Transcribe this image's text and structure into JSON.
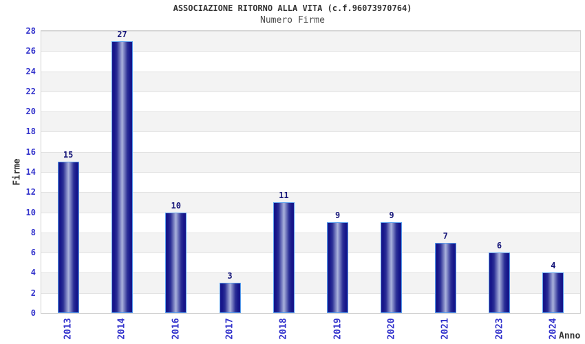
{
  "chart_data": {
    "type": "bar",
    "title": "ASSOCIAZIONE RITORNO ALLA VITA (c.f.96073970764)",
    "subtitle": "Numero Firme",
    "categories": [
      "2013",
      "2014",
      "2016",
      "2017",
      "2018",
      "2019",
      "2020",
      "2021",
      "2023",
      "2024"
    ],
    "values": [
      15,
      27,
      10,
      3,
      11,
      9,
      9,
      7,
      6,
      4
    ],
    "xlabel": "Anno",
    "ylabel": "Firme",
    "ylim": [
      0,
      28
    ],
    "ytick_step": 2,
    "yticks": [
      0,
      2,
      4,
      6,
      8,
      10,
      12,
      14,
      16,
      18,
      20,
      22,
      24,
      26,
      28
    ],
    "grid": true,
    "legend": false,
    "bar_value_labels": [
      15,
      27,
      10,
      3,
      11,
      9,
      9,
      7,
      6,
      4
    ]
  },
  "colors": {
    "tick_label": "#3333cc",
    "value_label": "#141478",
    "title_color": "#333333",
    "subtitle_color": "#4a4a4a",
    "bar_edge_dark": "#16168a",
    "bar_mid": "#2b2f96",
    "bar_center_light": "#aab2dc",
    "bar_outline": "#5aa0ee",
    "band": "#f3f3f3",
    "gridline": "#e2e2e2",
    "axis_border": "#cfcfcf"
  }
}
